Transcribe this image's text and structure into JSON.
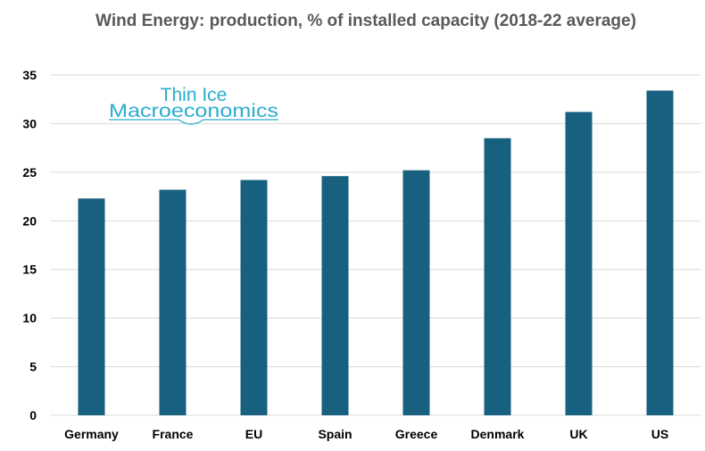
{
  "chart_data": {
    "type": "bar",
    "title": "Wind Energy: production, % of installed capacity (2018-22 average)",
    "xlabel": "",
    "ylabel": "",
    "categories": [
      "Germany",
      "France",
      "EU",
      "Spain",
      "Greece",
      "Denmark",
      "UK",
      "US"
    ],
    "values": [
      22.3,
      23.2,
      24.2,
      24.6,
      25.2,
      28.5,
      31.2,
      33.4
    ],
    "ylim": [
      0,
      35
    ],
    "yticks": [
      "0",
      "5",
      "10",
      "15",
      "20",
      "25",
      "30",
      "35"
    ],
    "grid": true,
    "bar_color": "#17607f",
    "grid_color": "#d9d9d9"
  },
  "logo": {
    "line1": "Thin Ice",
    "line2": "Macroeconomics",
    "color": "#2aaecd"
  }
}
